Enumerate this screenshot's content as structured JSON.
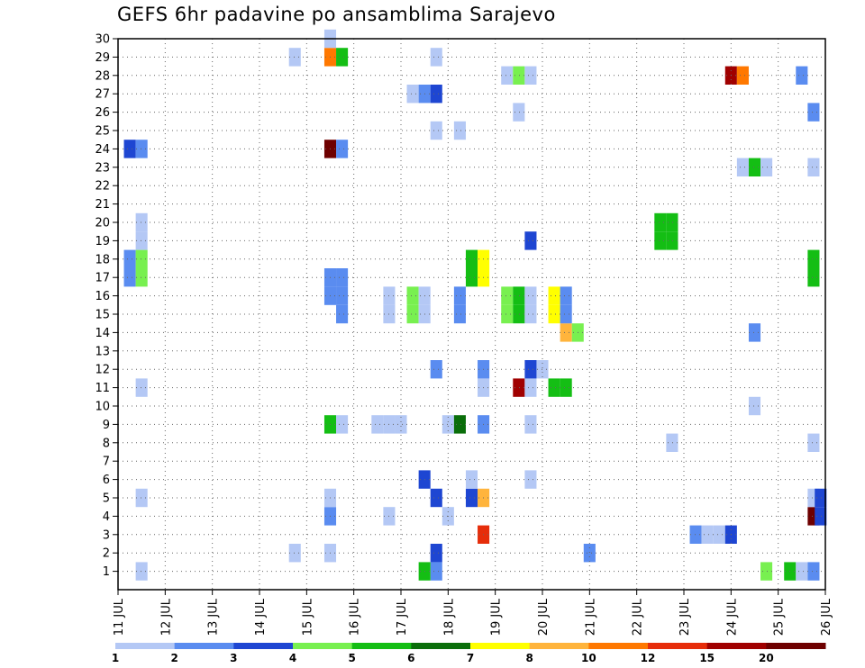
{
  "chart_data": {
    "type": "heatmap",
    "title": "GEFS 6hr padavine po ansamblima Sarajevo",
    "x_tick_labels": [
      "11 JUL",
      "12 JUL",
      "13 JUL",
      "14 JUL",
      "15 JUL",
      "16 JUL",
      "17 JUL",
      "18 JUL",
      "19 JUL",
      "20 JUL",
      "21 JUL",
      "22 JUL",
      "23 JUL",
      "24 JUL",
      "25 JUL",
      "26 JUL"
    ],
    "y_tick_labels": [
      "1",
      "2",
      "3",
      "4",
      "5",
      "6",
      "7",
      "8",
      "9",
      "10",
      "11",
      "12",
      "13",
      "14",
      "15",
      "16",
      "17",
      "18",
      "19",
      "20",
      "21",
      "22",
      "23",
      "24",
      "25",
      "26",
      "27",
      "28",
      "29",
      "30"
    ],
    "x_range_days": [
      11,
      26
    ],
    "y_range_members": [
      0,
      30
    ],
    "grid": "dotted",
    "legend": {
      "position": "bottom",
      "labels": [
        "1",
        "2",
        "3",
        "4",
        "5",
        "6",
        "7",
        "8",
        "10",
        "12",
        "15",
        "20"
      ],
      "colors": [
        "#b4c8f5",
        "#5a8cf0",
        "#1e46d2",
        "#78f050",
        "#14be14",
        "#0a6e0a",
        "#ffff00",
        "#ffb43c",
        "#ff7800",
        "#e62d0a",
        "#a00000",
        "#6e0000"
      ]
    },
    "cells": [
      {
        "day": 11.5,
        "m": 1,
        "l": 0
      },
      {
        "day": 17.75,
        "m": 1,
        "l": 1
      },
      {
        "day": 17.5,
        "m": 1,
        "l": 4
      },
      {
        "day": 24.75,
        "m": 1,
        "l": 3
      },
      {
        "day": 25.25,
        "m": 1,
        "l": 4
      },
      {
        "day": 25.5,
        "m": 1,
        "l": 0
      },
      {
        "day": 25.75,
        "m": 1,
        "l": 1
      },
      {
        "day": 14.75,
        "m": 2,
        "l": 0
      },
      {
        "day": 15.5,
        "m": 2,
        "l": 0
      },
      {
        "day": 17.75,
        "m": 2,
        "l": 2
      },
      {
        "day": 21.0,
        "m": 2,
        "l": 1
      },
      {
        "day": 18.75,
        "m": 3,
        "l": 9
      },
      {
        "day": 23.25,
        "m": 3,
        "l": 1
      },
      {
        "day": 23.5,
        "m": 3,
        "l": 0
      },
      {
        "day": 23.75,
        "m": 3,
        "l": 0
      },
      {
        "day": 24.0,
        "m": 3,
        "l": 2
      },
      {
        "day": 15.5,
        "m": 4,
        "l": 1
      },
      {
        "day": 16.75,
        "m": 4,
        "l": 0
      },
      {
        "day": 18.0,
        "m": 4,
        "l": 0
      },
      {
        "day": 25.75,
        "m": 4,
        "l": 11
      },
      {
        "day": 25.9,
        "m": 4,
        "l": 2
      },
      {
        "day": 11.5,
        "m": 5,
        "l": 0
      },
      {
        "day": 15.5,
        "m": 5,
        "l": 0
      },
      {
        "day": 17.75,
        "m": 5,
        "l": 2
      },
      {
        "day": 18.5,
        "m": 5,
        "l": 2
      },
      {
        "day": 18.75,
        "m": 5,
        "l": 7
      },
      {
        "day": 25.75,
        "m": 5,
        "l": 0
      },
      {
        "day": 25.9,
        "m": 5,
        "l": 2
      },
      {
        "day": 17.5,
        "m": 6,
        "l": 2
      },
      {
        "day": 18.5,
        "m": 6,
        "l": 0
      },
      {
        "day": 19.75,
        "m": 6,
        "l": 0
      },
      {
        "day": 22.75,
        "m": 8,
        "l": 0
      },
      {
        "day": 25.75,
        "m": 8,
        "l": 0
      },
      {
        "day": 15.5,
        "m": 9,
        "l": 4
      },
      {
        "day": 15.75,
        "m": 9,
        "l": 0
      },
      {
        "day": 16.5,
        "m": 9,
        "l": 0
      },
      {
        "day": 16.75,
        "m": 9,
        "l": 0
      },
      {
        "day": 17.0,
        "m": 9,
        "l": 0
      },
      {
        "day": 18.0,
        "m": 9,
        "l": 0
      },
      {
        "day": 18.25,
        "m": 9,
        "l": 5
      },
      {
        "day": 18.75,
        "m": 9,
        "l": 1
      },
      {
        "day": 19.75,
        "m": 9,
        "l": 0
      },
      {
        "day": 24.5,
        "m": 10,
        "l": 0
      },
      {
        "day": 11.5,
        "m": 11,
        "l": 0
      },
      {
        "day": 18.75,
        "m": 11,
        "l": 0
      },
      {
        "day": 19.5,
        "m": 11,
        "l": 10
      },
      {
        "day": 19.75,
        "m": 11,
        "l": 0
      },
      {
        "day": 20.25,
        "m": 11,
        "l": 4
      },
      {
        "day": 20.5,
        "m": 11,
        "l": 4
      },
      {
        "day": 17.75,
        "m": 12,
        "l": 1
      },
      {
        "day": 18.75,
        "m": 12,
        "l": 1
      },
      {
        "day": 19.75,
        "m": 12,
        "l": 2
      },
      {
        "day": 20.0,
        "m": 12,
        "l": 0
      },
      {
        "day": 20.5,
        "m": 14,
        "l": 7
      },
      {
        "day": 20.75,
        "m": 14,
        "l": 3
      },
      {
        "day": 24.5,
        "m": 14,
        "l": 1
      },
      {
        "day": 15.75,
        "m": 15,
        "l": 1
      },
      {
        "day": 16.75,
        "m": 15,
        "l": 0
      },
      {
        "day": 17.25,
        "m": 15,
        "l": 3
      },
      {
        "day": 17.5,
        "m": 15,
        "l": 0
      },
      {
        "day": 18.25,
        "m": 15,
        "l": 1
      },
      {
        "day": 19.25,
        "m": 15,
        "l": 3
      },
      {
        "day": 19.5,
        "m": 15,
        "l": 4
      },
      {
        "day": 19.75,
        "m": 15,
        "l": 0
      },
      {
        "day": 20.25,
        "m": 15,
        "l": 6
      },
      {
        "day": 20.5,
        "m": 15,
        "l": 1
      },
      {
        "day": 15.5,
        "m": 16,
        "l": 1
      },
      {
        "day": 15.75,
        "m": 16,
        "l": 1
      },
      {
        "day": 16.75,
        "m": 16,
        "l": 0
      },
      {
        "day": 17.25,
        "m": 16,
        "l": 3
      },
      {
        "day": 17.5,
        "m": 16,
        "l": 0
      },
      {
        "day": 18.25,
        "m": 16,
        "l": 1
      },
      {
        "day": 19.25,
        "m": 16,
        "l": 3
      },
      {
        "day": 19.5,
        "m": 16,
        "l": 4
      },
      {
        "day": 19.75,
        "m": 16,
        "l": 0
      },
      {
        "day": 20.25,
        "m": 16,
        "l": 6
      },
      {
        "day": 20.5,
        "m": 16,
        "l": 1
      },
      {
        "day": 15.5,
        "m": 17,
        "l": 1
      },
      {
        "day": 15.75,
        "m": 17,
        "l": 1
      },
      {
        "day": 11.25,
        "m": 18,
        "l": 1
      },
      {
        "day": 11.5,
        "m": 18,
        "l": 3
      },
      {
        "day": 18.5,
        "m": 18,
        "l": 4
      },
      {
        "day": 18.75,
        "m": 18,
        "l": 6
      },
      {
        "day": 25.75,
        "m": 18,
        "l": 4
      },
      {
        "day": 11.25,
        "m": 17,
        "l": 1
      },
      {
        "day": 11.5,
        "m": 17,
        "l": 3
      },
      {
        "day": 18.5,
        "m": 17,
        "l": 4
      },
      {
        "day": 18.75,
        "m": 17,
        "l": 6
      },
      {
        "day": 25.75,
        "m": 17,
        "l": 4
      },
      {
        "day": 19.75,
        "m": 19,
        "l": 2
      },
      {
        "day": 11.5,
        "m": 20,
        "l": 0
      },
      {
        "day": 22.5,
        "m": 20,
        "l": 4
      },
      {
        "day": 22.75,
        "m": 20,
        "l": 4
      },
      {
        "day": 11.5,
        "m": 19,
        "l": 0
      },
      {
        "day": 22.5,
        "m": 19,
        "l": 4
      },
      {
        "day": 22.75,
        "m": 19,
        "l": 4
      },
      {
        "day": 24.25,
        "m": 23,
        "l": 0
      },
      {
        "day": 24.5,
        "m": 23,
        "l": 4
      },
      {
        "day": 24.75,
        "m": 23,
        "l": 0
      },
      {
        "day": 25.75,
        "m": 23,
        "l": 0
      },
      {
        "day": 11.25,
        "m": 24,
        "l": 2
      },
      {
        "day": 11.5,
        "m": 24,
        "l": 1
      },
      {
        "day": 15.5,
        "m": 24,
        "l": 11
      },
      {
        "day": 15.75,
        "m": 24,
        "l": 1
      },
      {
        "day": 17.75,
        "m": 25,
        "l": 0
      },
      {
        "day": 18.25,
        "m": 25,
        "l": 0
      },
      {
        "day": 19.5,
        "m": 26,
        "l": 0
      },
      {
        "day": 25.75,
        "m": 26,
        "l": 1
      },
      {
        "day": 17.25,
        "m": 27,
        "l": 0
      },
      {
        "day": 17.5,
        "m": 27,
        "l": 1
      },
      {
        "day": 17.75,
        "m": 27,
        "l": 2
      },
      {
        "day": 19.25,
        "m": 28,
        "l": 0
      },
      {
        "day": 19.5,
        "m": 28,
        "l": 3
      },
      {
        "day": 19.75,
        "m": 28,
        "l": 0
      },
      {
        "day": 24.0,
        "m": 28,
        "l": 10
      },
      {
        "day": 24.25,
        "m": 28,
        "l": 8
      },
      {
        "day": 25.5,
        "m": 28,
        "l": 1
      },
      {
        "day": 14.75,
        "m": 29,
        "l": 0
      },
      {
        "day": 15.5,
        "m": 29,
        "l": 8
      },
      {
        "day": 15.75,
        "m": 29,
        "l": 4
      },
      {
        "day": 17.75,
        "m": 29,
        "l": 0
      },
      {
        "day": 15.5,
        "m": 30,
        "l": 0
      }
    ]
  }
}
